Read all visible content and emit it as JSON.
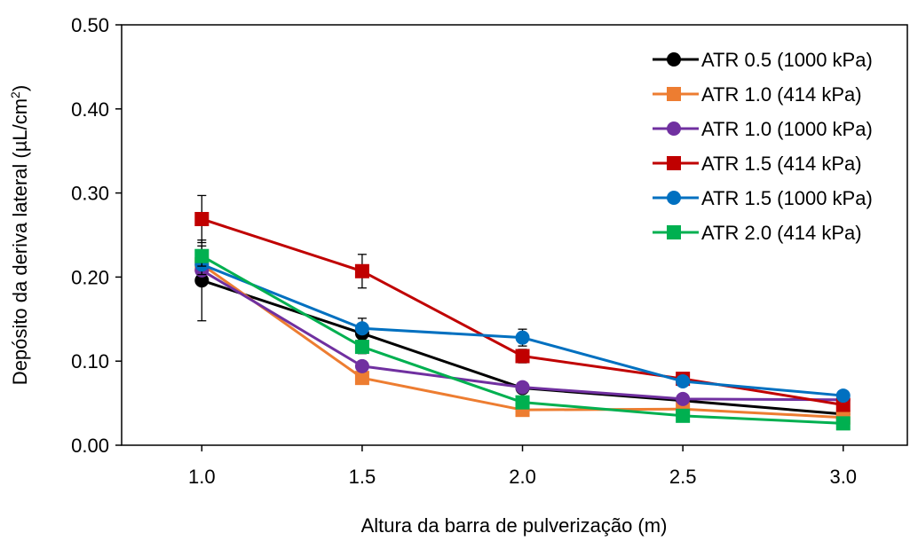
{
  "chart_data": {
    "type": "line",
    "xlabel": "Altura da barra de pulverização (m)",
    "ylabel_main": "Depósito da deriva lateral (µL/cm",
    "ylabel_sup": "2",
    "ylabel_end": ")",
    "x": [
      1.0,
      1.5,
      2.0,
      2.5,
      3.0
    ],
    "x_tick_labels": [
      "1.0",
      "1.5",
      "2.0",
      "2.5",
      "3.0"
    ],
    "xlim": [
      0.75,
      3.2
    ],
    "ylim": [
      0.0,
      0.5
    ],
    "y_ticks": [
      0.0,
      0.1,
      0.2,
      0.3,
      0.4,
      0.5
    ],
    "y_tick_labels": [
      "0.00",
      "0.10",
      "0.20",
      "0.30",
      "0.40",
      "0.50"
    ],
    "grid": false,
    "legend_position": "top-right",
    "series": [
      {
        "name": "ATR 0.5 (1000 kPa)",
        "color": "#000000",
        "marker": "circle",
        "values": [
          0.196,
          0.133,
          0.068,
          0.053,
          0.037
        ],
        "errors": [
          0.048,
          0.01,
          0.005,
          0.004,
          0.003
        ]
      },
      {
        "name": "ATR 1.0 (414 kPa)",
        "color": "#ed7d31",
        "marker": "square",
        "values": [
          0.215,
          0.08,
          0.042,
          0.043,
          0.033
        ],
        "errors": [
          0.01,
          0.005,
          0.004,
          0.004,
          0.003
        ]
      },
      {
        "name": "ATR 1.0 (1000 kPa)",
        "color": "#7030a0",
        "marker": "circle",
        "values": [
          0.208,
          0.094,
          0.069,
          0.055,
          0.054
        ],
        "errors": [
          0.01,
          0.006,
          0.004,
          0.004,
          0.003
        ]
      },
      {
        "name": "ATR 1.5 (414 kPa)",
        "color": "#c00000",
        "marker": "square",
        "values": [
          0.269,
          0.207,
          0.106,
          0.079,
          0.048
        ],
        "errors": [
          0.028,
          0.02,
          0.008,
          0.006,
          0.004
        ]
      },
      {
        "name": "ATR 1.5 (1000 kPa)",
        "color": "#0070c0",
        "marker": "circle",
        "values": [
          0.215,
          0.139,
          0.128,
          0.076,
          0.059
        ],
        "errors": [
          0.012,
          0.012,
          0.01,
          0.005,
          0.004
        ]
      },
      {
        "name": "ATR 2.0 (414 kPa)",
        "color": "#00b050",
        "marker": "square",
        "values": [
          0.225,
          0.117,
          0.051,
          0.035,
          0.026
        ],
        "errors": [
          0.012,
          0.008,
          0.004,
          0.003,
          0.003
        ]
      }
    ]
  }
}
